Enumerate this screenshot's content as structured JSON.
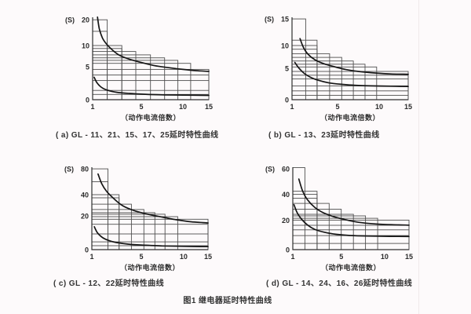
{
  "page": {
    "figure_title": "图1 继电器延时特性曲线"
  },
  "colors": {
    "background": "#fdfafb",
    "page_edge": "#f1eaeb",
    "grid": "#4f4f4f",
    "axis": "#2f2f2f",
    "curve": "#161616",
    "text": "#2b2b2b"
  },
  "chart_data": [
    {
      "id": "a",
      "type": "line",
      "caption": "( a) GL - 11、21、15、17、25延时特性曲线",
      "ylabel": "(S)",
      "xlabel": "（动作电流倍数）",
      "xlim": [
        1,
        15
      ],
      "ylim": [
        0,
        20
      ],
      "x_ticks": [
        {
          "v": 1,
          "f": 0.0
        },
        {
          "v": 5,
          "f": 0.419
        },
        {
          "v": 10,
          "f": 0.777
        },
        {
          "v": 15,
          "f": 1.0
        }
      ],
      "y_ticks": [
        {
          "v": 0,
          "f": 0.0
        },
        {
          "v": 5,
          "f": 0.4
        },
        {
          "v": 10,
          "f": 0.657
        },
        {
          "v": 20,
          "f": 0.97
        }
      ],
      "grid_steps": [
        [
          2.2,
          20
        ],
        [
          2.2,
          15.5
        ],
        [
          3.4,
          10
        ],
        [
          3.4,
          9.3
        ],
        [
          4.55,
          8.6
        ],
        [
          6.1,
          7.8
        ],
        [
          7.8,
          7.1
        ],
        [
          9.4,
          6.5
        ],
        [
          11.5,
          5.8
        ],
        [
          15,
          4.6
        ],
        [
          15,
          3.75
        ],
        [
          15,
          2.9
        ],
        [
          15,
          1.4
        ],
        [
          15,
          0.8
        ]
      ],
      "series": [
        {
          "name": "upper-limit-curve",
          "points": [
            [
              1.4,
              21
            ],
            [
              1.55,
              16.5
            ],
            [
              1.8,
              13
            ],
            [
              2.1,
              10.8
            ],
            [
              2.6,
              9
            ],
            [
              3.2,
              7.7
            ],
            [
              4,
              6.8
            ],
            [
              5,
              6
            ],
            [
              6.5,
              5.3
            ],
            [
              8,
              4.9
            ],
            [
              10,
              4.6
            ],
            [
              12.5,
              4.4
            ],
            [
              15,
              4.3
            ]
          ]
        },
        {
          "name": "lower-limit-curve",
          "points": [
            [
              1.12,
              3.4
            ],
            [
              1.35,
              2.6
            ],
            [
              1.7,
              1.9
            ],
            [
              2.2,
              1.45
            ],
            [
              3,
              1.12
            ],
            [
              4,
              0.95
            ],
            [
              5.5,
              0.82
            ],
            [
              7.5,
              0.74
            ],
            [
              10,
              0.7
            ],
            [
              15,
              0.66
            ]
          ]
        }
      ]
    },
    {
      "id": "b",
      "type": "line",
      "caption": "( b) GL - 13、23延时特性曲线",
      "ylabel": "(S)",
      "xlabel": "（动作电流倍数）",
      "xlim": [
        1,
        15
      ],
      "ylim": [
        0,
        15
      ],
      "x_ticks": [
        {
          "v": 1,
          "f": 0.0
        },
        {
          "v": 5,
          "f": 0.392
        },
        {
          "v": 10,
          "f": 0.75
        },
        {
          "v": 15,
          "f": 1.0
        }
      ],
      "y_ticks": [
        {
          "v": 0,
          "f": 0.0
        },
        {
          "v": 5,
          "f": 0.381
        },
        {
          "v": 10,
          "f": 0.657
        },
        {
          "v": 15,
          "f": 0.98
        }
      ],
      "grid_steps": [
        [
          2.2,
          15
        ],
        [
          3.2,
          11
        ],
        [
          3.2,
          10
        ],
        [
          3.2,
          9.2
        ],
        [
          4.3,
          8.2
        ],
        [
          5.5,
          7.4
        ],
        [
          6.9,
          6.6
        ],
        [
          8.3,
          5.9
        ],
        [
          9.7,
          5.3
        ],
        [
          15,
          4.5
        ],
        [
          15,
          3.9
        ],
        [
          15,
          3.3
        ],
        [
          15,
          2.2
        ],
        [
          15,
          1.4
        ],
        [
          15,
          0.7
        ]
      ],
      "series": [
        {
          "name": "upper-limit-curve",
          "points": [
            [
              1.7,
              11.3
            ],
            [
              2,
              9.6
            ],
            [
              2.4,
              8.1
            ],
            [
              3,
              6.9
            ],
            [
              3.8,
              6
            ],
            [
              4.8,
              5.3
            ],
            [
              6,
              4.8
            ],
            [
              7.5,
              4.5
            ],
            [
              9.5,
              4.25
            ],
            [
              12,
              4.1
            ],
            [
              15,
              4.05
            ]
          ]
        },
        {
          "name": "lower-limit-curve",
          "points": [
            [
              1.25,
              6.3
            ],
            [
              1.55,
              5.2
            ],
            [
              2,
              4.3
            ],
            [
              2.6,
              3.6
            ],
            [
              3.3,
              3.1
            ],
            [
              4.2,
              2.7
            ],
            [
              5.5,
              2.45
            ],
            [
              7,
              2.3
            ],
            [
              9,
              2.2
            ],
            [
              12,
              2.15
            ],
            [
              15,
              2.1
            ]
          ]
        }
      ]
    },
    {
      "id": "c",
      "type": "line",
      "caption": "( c) GL - 12、22延时特性曲线",
      "ylabel": "(S)",
      "xlabel": "（动作电流倍数）",
      "xlim": [
        1,
        15
      ],
      "ylim": [
        0,
        80
      ],
      "x_ticks": [
        {
          "v": 1,
          "f": 0.0
        },
        {
          "v": 5,
          "f": 0.426
        },
        {
          "v": 10,
          "f": 0.79
        },
        {
          "v": 15,
          "f": 1.0
        }
      ],
      "y_ticks": [
        {
          "v": 0,
          "f": 0.0
        },
        {
          "v": 20,
          "f": 0.41
        },
        {
          "v": 40,
          "f": 0.667
        },
        {
          "v": 80,
          "f": 0.98
        }
      ],
      "grid_steps": [
        [
          2.3,
          80
        ],
        [
          2.3,
          60
        ],
        [
          3.2,
          40
        ],
        [
          3.2,
          37
        ],
        [
          4.2,
          31
        ],
        [
          5.3,
          26
        ],
        [
          6.6,
          23
        ],
        [
          7.8,
          21.5
        ],
        [
          9.3,
          19.5
        ],
        [
          15,
          18
        ],
        [
          15,
          15
        ],
        [
          15,
          9.3
        ],
        [
          15,
          4.6
        ],
        [
          15,
          2.3
        ]
      ],
      "series": [
        {
          "name": "upper-limit-curve",
          "points": [
            [
              1.5,
              72
            ],
            [
              1.8,
              57
            ],
            [
              2.2,
              45
            ],
            [
              2.8,
              36
            ],
            [
              3.5,
              29.5
            ],
            [
              4.4,
              25
            ],
            [
              5.5,
              22
            ],
            [
              7,
              19.7
            ],
            [
              9,
              17.8
            ],
            [
              11.5,
              16.5
            ],
            [
              15,
              15.8
            ]
          ]
        },
        {
          "name": "lower-limit-curve",
          "points": [
            [
              1.2,
              13.5
            ],
            [
              1.45,
              10
            ],
            [
              1.85,
              7.2
            ],
            [
              2.4,
              5.3
            ],
            [
              3,
              4.2
            ],
            [
              4,
              3.2
            ],
            [
              5.5,
              2.6
            ],
            [
              7.5,
              2.2
            ],
            [
              10,
              1.95
            ],
            [
              15,
              1.75
            ]
          ]
        }
      ]
    },
    {
      "id": "d",
      "type": "line",
      "caption": "( d) GL - 14、24、16、26延时特性曲线",
      "ylabel": "(S)",
      "xlabel": "（动作电流倍数）",
      "xlim": [
        1,
        15
      ],
      "ylim": [
        0,
        60
      ],
      "x_ticks": [
        {
          "v": 1,
          "f": 0.0
        },
        {
          "v": 5,
          "f": 0.417
        },
        {
          "v": 10,
          "f": 0.79
        },
        {
          "v": 15,
          "f": 1.0
        }
      ],
      "y_ticks": [
        {
          "v": 0,
          "f": 0.0
        },
        {
          "v": 20,
          "f": 0.358
        },
        {
          "v": 40,
          "f": 0.67
        },
        {
          "v": 60,
          "f": 0.98
        }
      ],
      "grid_steps": [
        [
          2,
          61
        ],
        [
          3,
          42.5
        ],
        [
          3,
          40
        ],
        [
          3,
          37
        ],
        [
          4,
          33
        ],
        [
          5,
          28.5
        ],
        [
          6.4,
          24.5
        ],
        [
          7.8,
          23.3
        ],
        [
          9.2,
          21.4
        ],
        [
          15,
          20
        ],
        [
          15,
          16.5
        ],
        [
          15,
          13.4
        ],
        [
          15,
          9.5
        ],
        [
          15,
          4.2
        ]
      ],
      "series": [
        {
          "name": "upper-limit-curve",
          "points": [
            [
              1.5,
              52
            ],
            [
              1.8,
              43
            ],
            [
              2.2,
              36
            ],
            [
              2.8,
              30
            ],
            [
              3.5,
              25.8
            ],
            [
              4.4,
              22.6
            ],
            [
              5.5,
              20.3
            ],
            [
              7,
              18.5
            ],
            [
              9,
              17.4
            ],
            [
              11.5,
              16.9
            ],
            [
              15,
              16.6
            ]
          ]
        },
        {
          "name": "lower-limit-curve",
          "points": [
            [
              1.1,
              32
            ],
            [
              1.35,
              26
            ],
            [
              1.7,
              21
            ],
            [
              2.2,
              16.8
            ],
            [
              2.8,
              13.8
            ],
            [
              3.6,
              11.8
            ],
            [
              4.6,
              10.4
            ],
            [
              6,
              9.6
            ],
            [
              8,
              9.2
            ],
            [
              11,
              9
            ],
            [
              15,
              8.9
            ]
          ]
        }
      ]
    }
  ]
}
